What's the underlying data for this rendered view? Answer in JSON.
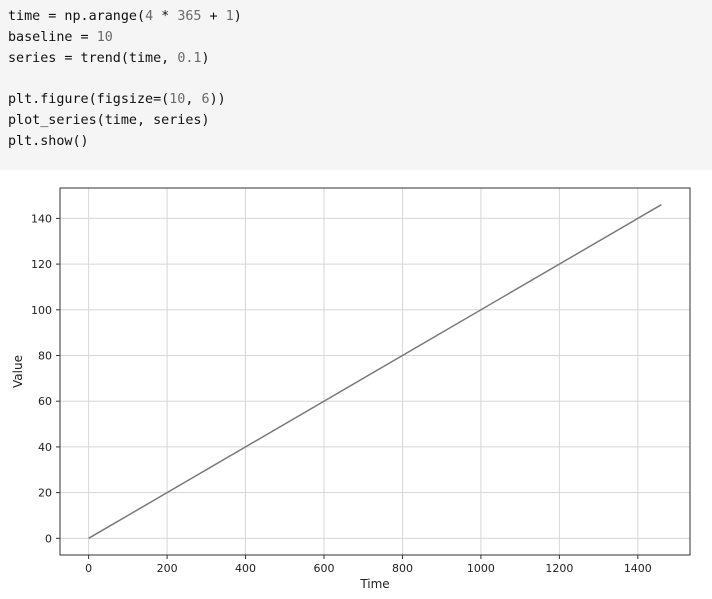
{
  "code": {
    "lines": [
      [
        {
          "t": "time = np.arange(",
          "k": "code"
        },
        {
          "t": "4",
          "k": "num"
        },
        {
          "t": " * ",
          "k": "code"
        },
        {
          "t": "365",
          "k": "num"
        },
        {
          "t": " + ",
          "k": "code"
        },
        {
          "t": "1",
          "k": "num"
        },
        {
          "t": ")",
          "k": "code"
        }
      ],
      [
        {
          "t": "baseline = ",
          "k": "code"
        },
        {
          "t": "10",
          "k": "num"
        }
      ],
      [
        {
          "t": "series = trend(time, ",
          "k": "code"
        },
        {
          "t": "0.1",
          "k": "num"
        },
        {
          "t": ")",
          "k": "code"
        }
      ],
      [],
      [
        {
          "t": "plt.figure(figsize=(",
          "k": "code"
        },
        {
          "t": "10",
          "k": "num"
        },
        {
          "t": ", ",
          "k": "code"
        },
        {
          "t": "6",
          "k": "num"
        },
        {
          "t": "))",
          "k": "code"
        }
      ],
      [
        {
          "t": "plot_series(time, series)",
          "k": "code"
        }
      ],
      [
        {
          "t": "plt.show()",
          "k": "code"
        }
      ]
    ]
  },
  "chart_data": {
    "type": "line",
    "xlabel": "Time",
    "ylabel": "Value",
    "xlim": [
      -73,
      1533
    ],
    "ylim": [
      -7.3,
      153.3
    ],
    "xticks": [
      0,
      200,
      400,
      600,
      800,
      1000,
      1200,
      1400
    ],
    "yticks": [
      0,
      20,
      40,
      60,
      80,
      100,
      120,
      140
    ],
    "grid": true,
    "series": [
      {
        "x": [
          0,
          1460
        ],
        "y": [
          0,
          146
        ],
        "color": "#7a7a7a"
      }
    ]
  }
}
